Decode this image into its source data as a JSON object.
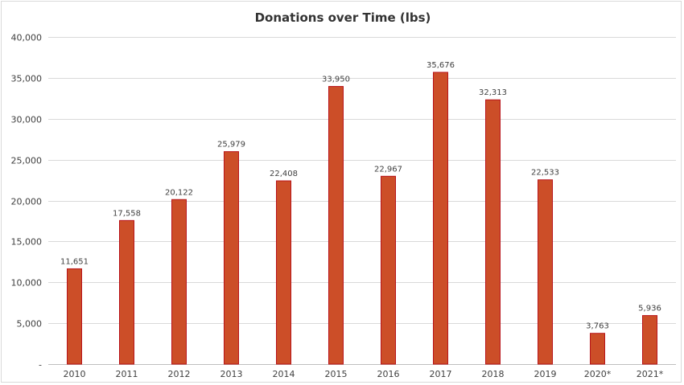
{
  "chart_data": {
    "type": "bar",
    "title": "Donations over Time (lbs)",
    "xlabel": "",
    "ylabel": "",
    "categories": [
      "2010",
      "2011",
      "2012",
      "2013",
      "2014",
      "2015",
      "2016",
      "2017",
      "2018",
      "2019",
      "2020*",
      "2021*"
    ],
    "values": [
      11651,
      17558,
      20122,
      25979,
      22408,
      33950,
      22967,
      35676,
      32313,
      22533,
      3763,
      5936
    ],
    "data_labels": [
      "11,651",
      "17,558",
      "20,122",
      "25,979",
      "22,408",
      "33,950",
      "22,967",
      "35,676",
      "32,313",
      "22,533",
      "3,763",
      "5,936"
    ],
    "ylim": [
      0,
      40000
    ],
    "yticks": [
      0,
      5000,
      10000,
      15000,
      20000,
      25000,
      30000,
      35000,
      40000
    ],
    "ytick_labels": [
      "-",
      "5,000",
      "10,000",
      "15,000",
      "20,000",
      "25,000",
      "30,000",
      "35,000",
      "40,000"
    ],
    "grid": true,
    "legend": "none",
    "bar_color": "#CC4E28",
    "bar_edge_color": "#B8141A"
  }
}
